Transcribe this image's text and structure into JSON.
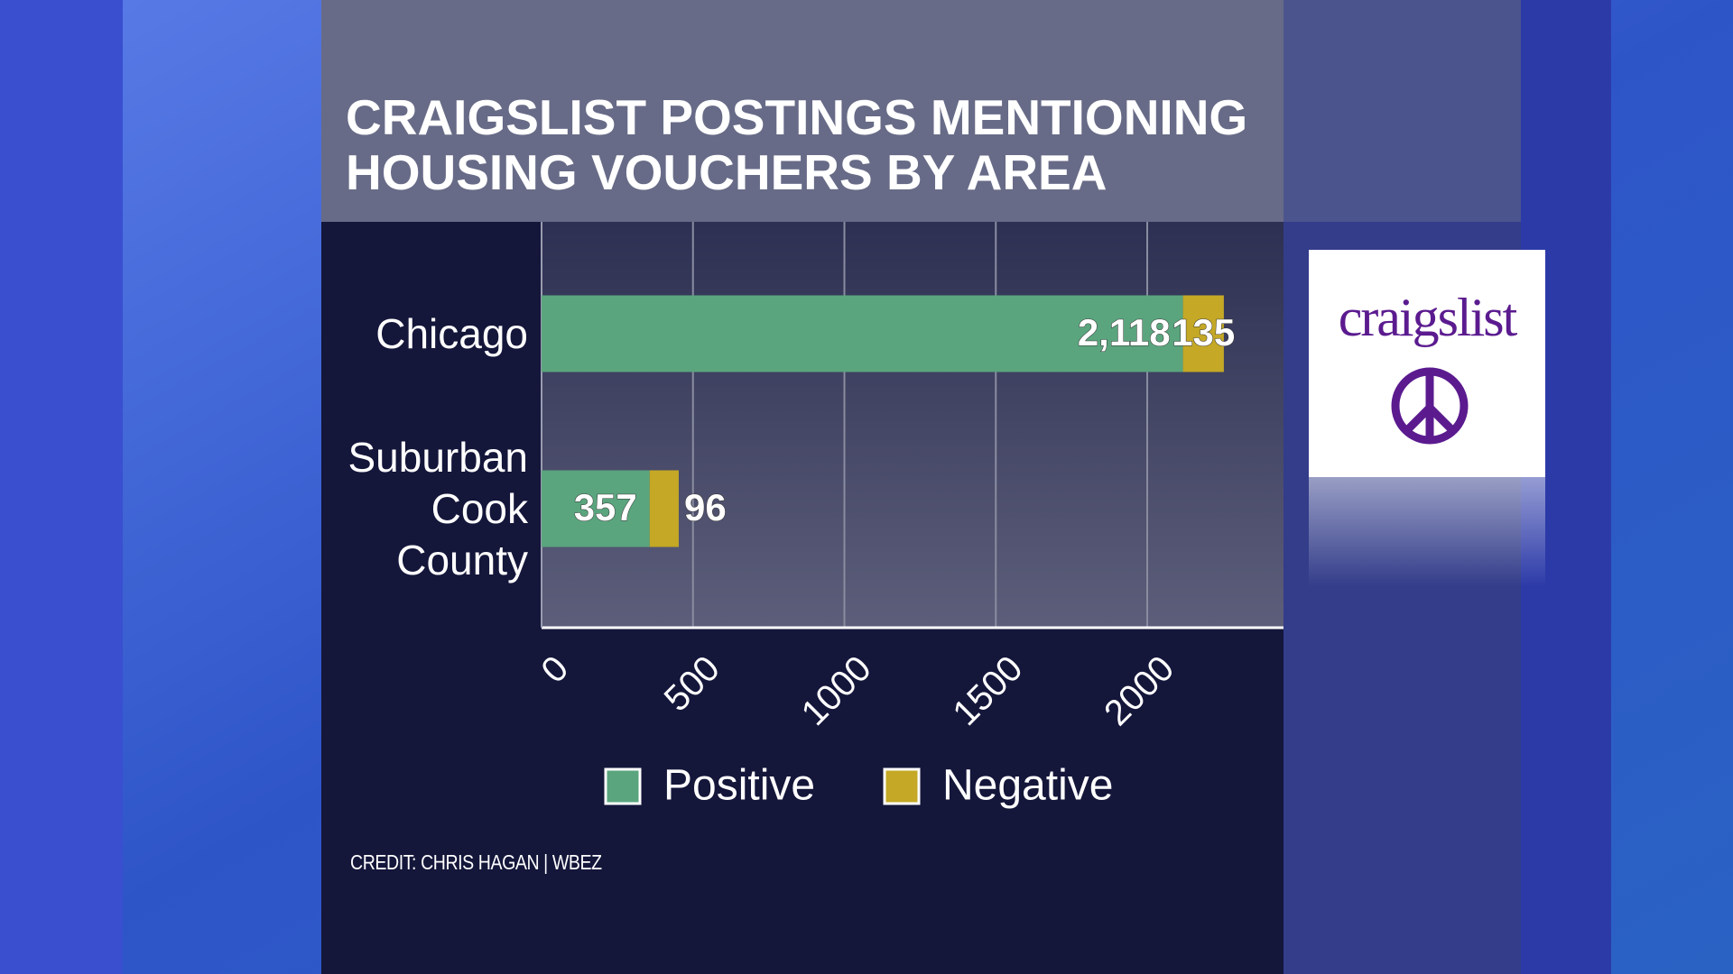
{
  "chart_data": {
    "type": "stacked_bar_horizontal",
    "title": "CRAIGSLIST POSTINGS MENTIONING HOUSING VOUCHERS BY AREA",
    "categories": [
      "Chicago",
      "Suburban Cook County"
    ],
    "series": [
      {
        "name": "Positive",
        "color": "#5aa57e",
        "values": [
          2118,
          357
        ],
        "value_labels": [
          "2,118",
          "357"
        ]
      },
      {
        "name": "Negative",
        "color": "#c4a826",
        "values": [
          135,
          96
        ]
      }
    ],
    "xlim": [
      0,
      2450
    ],
    "xticks": [
      0,
      500,
      1000,
      1500,
      2000
    ],
    "grid": true,
    "legend": "bottom",
    "credit": "CREDIT: CHRIS HAGAN | WBEZ"
  },
  "logo_text": "craigslist"
}
